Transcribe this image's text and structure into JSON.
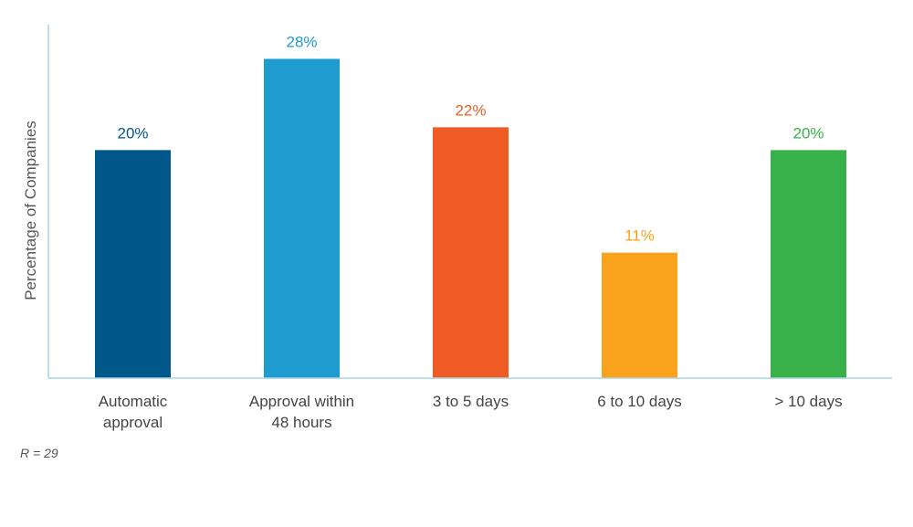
{
  "chart_data": {
    "type": "bar",
    "categories": [
      [
        "Automatic",
        "approval"
      ],
      [
        "Approval within",
        "48 hours"
      ],
      [
        "3 to 5 days"
      ],
      [
        "6 to 10 days"
      ],
      [
        "> 10 days"
      ]
    ],
    "values": [
      20,
      28,
      22,
      11,
      20
    ],
    "value_labels": [
      "20%",
      "28%",
      "22%",
      "11%",
      "20%"
    ],
    "colors": [
      "#00578A",
      "#1E9BCF",
      "#F05A24",
      "#F9A21B",
      "#39B14A"
    ],
    "ylabel": "Percentage of Companies",
    "xlabel": "",
    "ylim": [
      0,
      31
    ],
    "grid": false,
    "axis_color": "#A9D4E6"
  },
  "footnote": "R = 29"
}
